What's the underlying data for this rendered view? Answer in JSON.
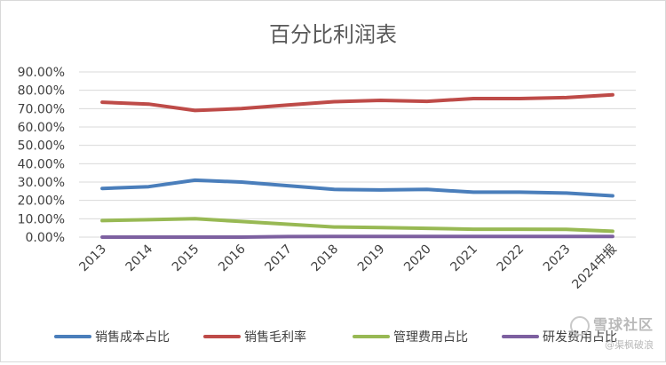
{
  "chart_data": {
    "type": "line",
    "title": "百分比利润表",
    "categories": [
      "2013",
      "2014",
      "2015",
      "2016",
      "2017",
      "2018",
      "2019",
      "2020",
      "2021",
      "2022",
      "2023",
      "2024中报"
    ],
    "y_tick_labels": [
      "0.00%",
      "10.00%",
      "20.00%",
      "30.00%",
      "40.00%",
      "50.00%",
      "60.00%",
      "70.00%",
      "80.00%",
      "90.00%"
    ],
    "ylim": [
      0,
      90
    ],
    "grid": true,
    "legend_position": "bottom",
    "series": [
      {
        "name": "销售成本占比",
        "color": "#4a7ebb",
        "values": [
          26.5,
          27.5,
          31,
          30,
          28,
          26,
          25.7,
          26,
          24.5,
          24.5,
          24,
          22.5
        ]
      },
      {
        "name": "销售毛利率",
        "color": "#be4b48",
        "values": [
          73.5,
          72.5,
          69,
          70,
          72,
          73.8,
          74.5,
          74,
          75.5,
          75.5,
          76,
          77.5
        ]
      },
      {
        "name": "管理费用占比",
        "color": "#98b954",
        "values": [
          9,
          9.5,
          10,
          8.5,
          7,
          5.5,
          5.2,
          4.8,
          4.3,
          4.3,
          4.2,
          3.2
        ]
      },
      {
        "name": "研发费用占比",
        "color": "#7d60a0",
        "values": [
          0,
          0,
          0,
          0,
          0.3,
          0.4,
          0.4,
          0.4,
          0.4,
          0.4,
          0.4,
          0.4
        ]
      }
    ]
  },
  "watermark": {
    "main": "雪球社区",
    "sub": "@渠枫破浪"
  }
}
